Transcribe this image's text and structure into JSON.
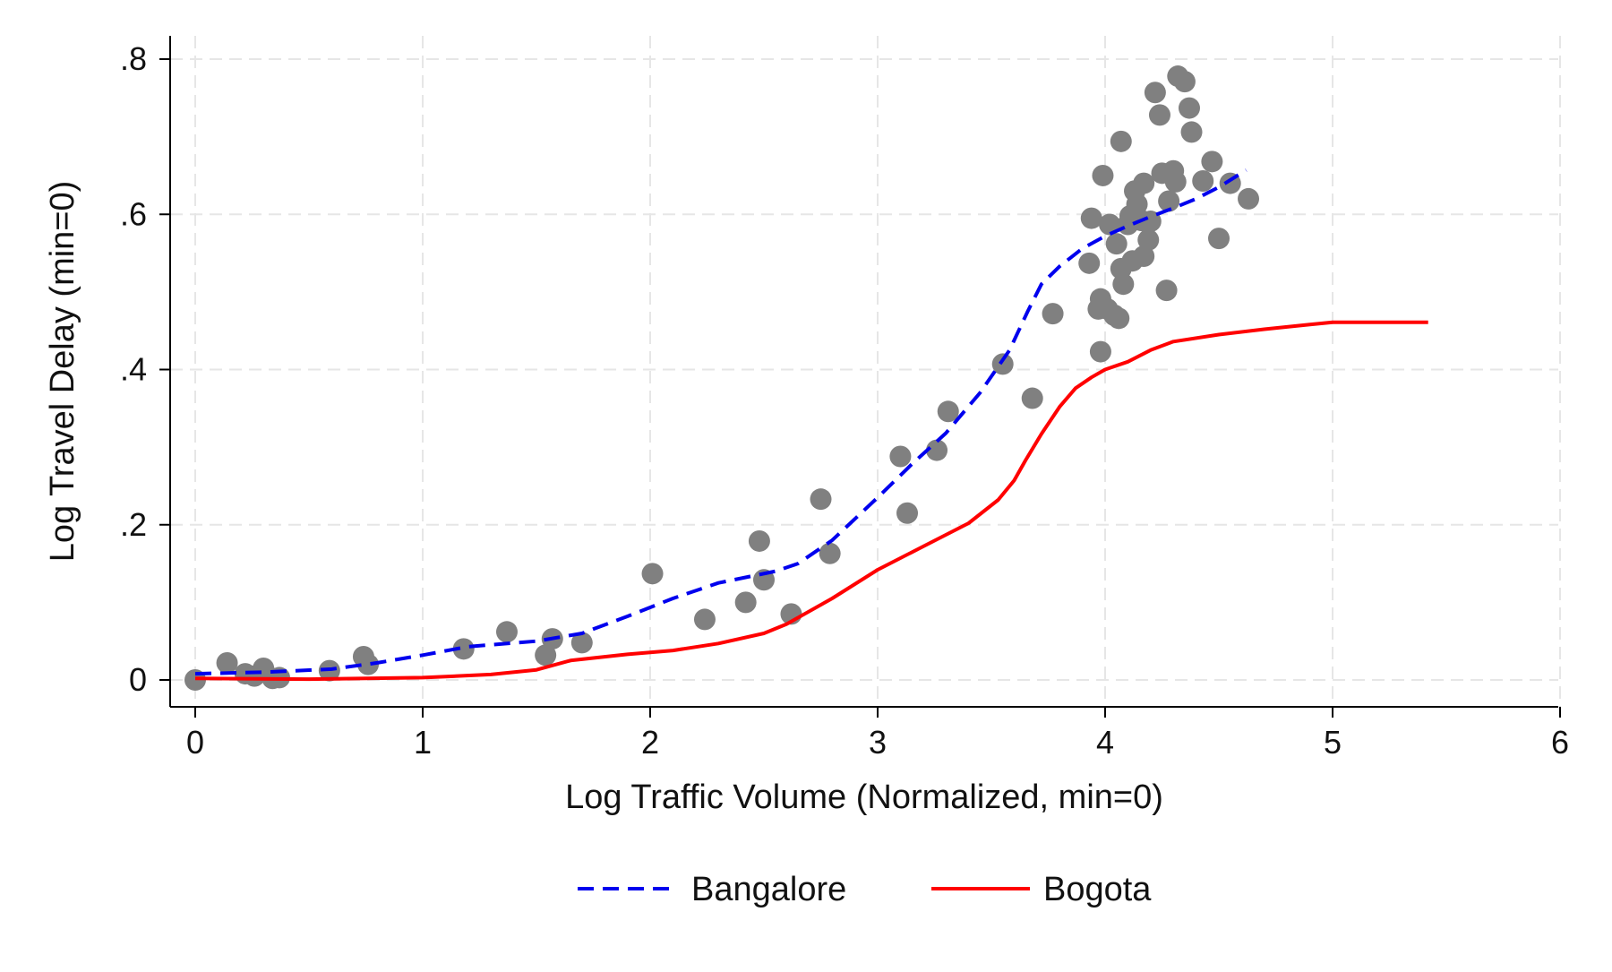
{
  "chart_data": {
    "type": "scatter",
    "xlabel": "Log Traffic Volume (Normalized, min=0)",
    "ylabel": "Log Travel Delay (min=0)",
    "xlim": [
      0,
      6
    ],
    "ylim": [
      0,
      0.8
    ],
    "x_ticks": [
      0,
      1,
      2,
      3,
      4,
      5,
      6
    ],
    "x_tick_labels": [
      "0",
      "1",
      "2",
      "3",
      "4",
      "5",
      "6"
    ],
    "y_ticks": [
      0,
      0.2,
      0.4,
      0.6,
      0.8
    ],
    "y_tick_labels": [
      "0",
      ".2",
      ".4",
      ".6",
      ".8"
    ],
    "grid": "dashed, both axes",
    "legend_position": "bottom",
    "scatter": {
      "color": "#808080",
      "points": [
        [
          0.0,
          0.0
        ],
        [
          0.14,
          0.022
        ],
        [
          0.22,
          0.008
        ],
        [
          0.26,
          0.005
        ],
        [
          0.3,
          0.015
        ],
        [
          0.34,
          0.002
        ],
        [
          0.37,
          0.003
        ],
        [
          0.59,
          0.012
        ],
        [
          0.74,
          0.03
        ],
        [
          0.76,
          0.02
        ],
        [
          1.18,
          0.04
        ],
        [
          1.37,
          0.062
        ],
        [
          1.54,
          0.032
        ],
        [
          1.57,
          0.053
        ],
        [
          1.7,
          0.048
        ],
        [
          2.01,
          0.137
        ],
        [
          2.24,
          0.078
        ],
        [
          2.42,
          0.1
        ],
        [
          2.48,
          0.179
        ],
        [
          2.5,
          0.129
        ],
        [
          2.62,
          0.085
        ],
        [
          2.75,
          0.233
        ],
        [
          2.79,
          0.163
        ],
        [
          3.1,
          0.288
        ],
        [
          3.13,
          0.215
        ],
        [
          3.26,
          0.296
        ],
        [
          3.31,
          0.346
        ],
        [
          3.55,
          0.407
        ],
        [
          3.68,
          0.363
        ],
        [
          3.77,
          0.472
        ],
        [
          3.93,
          0.537
        ],
        [
          3.94,
          0.595
        ],
        [
          3.97,
          0.478
        ],
        [
          3.98,
          0.491
        ],
        [
          3.98,
          0.423
        ],
        [
          3.99,
          0.65
        ],
        [
          4.01,
          0.478
        ],
        [
          4.02,
          0.587
        ],
        [
          4.04,
          0.47
        ],
        [
          4.05,
          0.562
        ],
        [
          4.06,
          0.466
        ],
        [
          4.07,
          0.694
        ],
        [
          4.07,
          0.53
        ],
        [
          4.08,
          0.51
        ],
        [
          4.1,
          0.587
        ],
        [
          4.11,
          0.598
        ],
        [
          4.12,
          0.54
        ],
        [
          4.13,
          0.63
        ],
        [
          4.14,
          0.613
        ],
        [
          4.16,
          0.592
        ],
        [
          4.17,
          0.64
        ],
        [
          4.17,
          0.546
        ],
        [
          4.19,
          0.567
        ],
        [
          4.2,
          0.591
        ],
        [
          4.22,
          0.757
        ],
        [
          4.24,
          0.728
        ],
        [
          4.25,
          0.653
        ],
        [
          4.27,
          0.502
        ],
        [
          4.28,
          0.617
        ],
        [
          4.3,
          0.656
        ],
        [
          4.31,
          0.642
        ],
        [
          4.32,
          0.778
        ],
        [
          4.35,
          0.771
        ],
        [
          4.37,
          0.737
        ],
        [
          4.38,
          0.706
        ],
        [
          4.43,
          0.643
        ],
        [
          4.47,
          0.668
        ],
        [
          4.5,
          0.569
        ],
        [
          4.55,
          0.64
        ],
        [
          4.63,
          0.62
        ]
      ]
    },
    "series": [
      {
        "name": "Bangalore",
        "color": "#0000ee",
        "style": "dashed",
        "x": [
          0.0,
          0.3,
          0.6,
          0.8,
          1.0,
          1.2,
          1.5,
          1.7,
          1.9,
          2.1,
          2.3,
          2.55,
          2.65,
          2.8,
          3.0,
          3.15,
          3.3,
          3.45,
          3.58,
          3.66,
          3.72,
          3.8,
          3.9,
          4.0,
          4.1,
          4.2,
          4.3,
          4.4,
          4.5,
          4.62
        ],
        "y": [
          0.008,
          0.01,
          0.014,
          0.022,
          0.032,
          0.043,
          0.05,
          0.06,
          0.082,
          0.105,
          0.125,
          0.14,
          0.15,
          0.18,
          0.235,
          0.278,
          0.318,
          0.37,
          0.425,
          0.475,
          0.51,
          0.533,
          0.556,
          0.572,
          0.585,
          0.597,
          0.608,
          0.62,
          0.635,
          0.657
        ]
      },
      {
        "name": "Bogota",
        "color": "#ff0000",
        "style": "solid",
        "x": [
          0.0,
          0.5,
          1.0,
          1.3,
          1.5,
          1.65,
          1.9,
          2.1,
          2.3,
          2.5,
          2.6,
          2.8,
          3.0,
          3.2,
          3.4,
          3.53,
          3.6,
          3.65,
          3.72,
          3.8,
          3.87,
          3.94,
          4.0,
          4.1,
          4.2,
          4.3,
          4.5,
          4.7,
          4.9,
          5.0,
          5.2,
          5.42
        ],
        "y": [
          0.002,
          0.001,
          0.003,
          0.007,
          0.013,
          0.025,
          0.033,
          0.038,
          0.047,
          0.06,
          0.072,
          0.105,
          0.142,
          0.172,
          0.202,
          0.232,
          0.257,
          0.283,
          0.317,
          0.352,
          0.376,
          0.39,
          0.4,
          0.41,
          0.425,
          0.436,
          0.445,
          0.452,
          0.458,
          0.461,
          0.461,
          0.461
        ]
      }
    ]
  }
}
